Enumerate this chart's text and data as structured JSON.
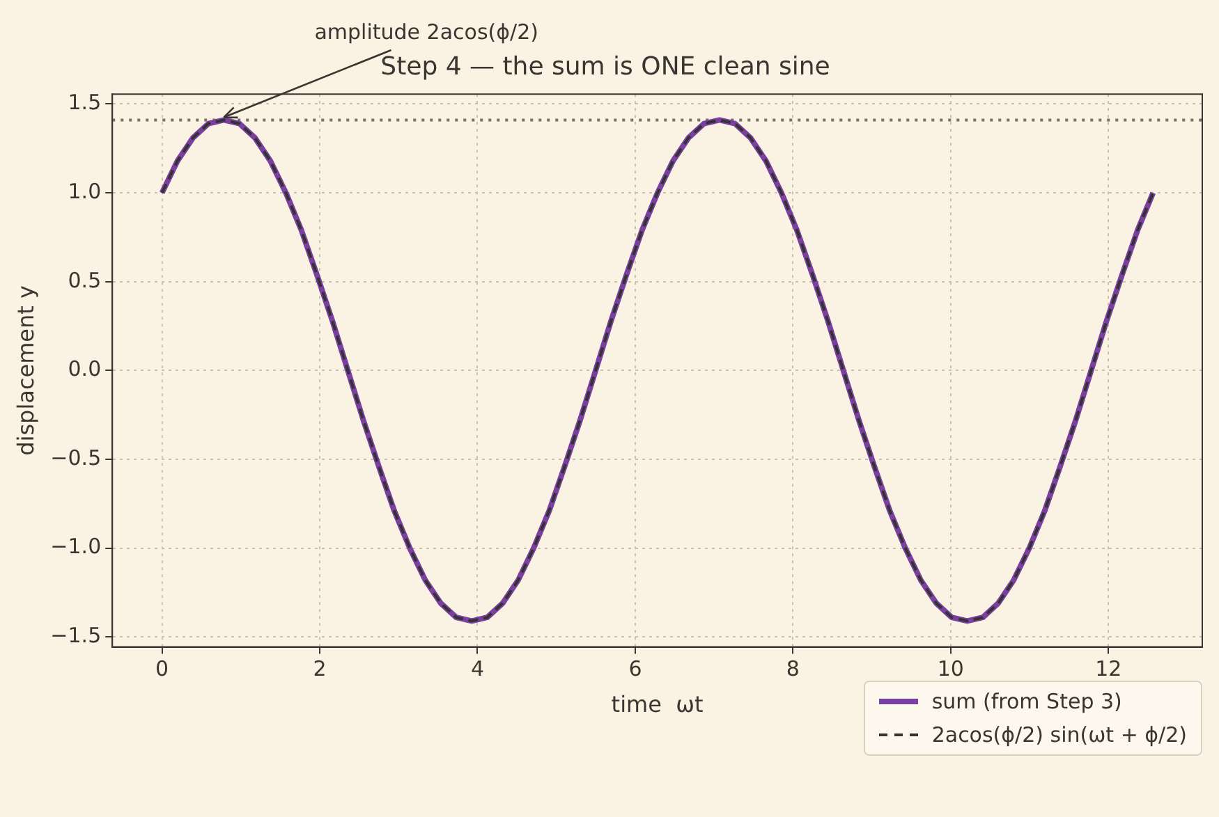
{
  "chart_data": {
    "type": "line",
    "title": "Step 4 — the sum is ONE clean sine",
    "xlabel": "time  ωt",
    "ylabel": "displacement y",
    "x": [
      0,
      0.196,
      0.393,
      0.589,
      0.785,
      0.982,
      1.178,
      1.374,
      1.571,
      1.767,
      1.963,
      2.16,
      2.356,
      2.553,
      2.749,
      2.945,
      3.142,
      3.338,
      3.534,
      3.731,
      3.927,
      4.123,
      4.32,
      4.516,
      4.712,
      4.909,
      5.105,
      5.301,
      5.498,
      5.694,
      5.89,
      6.087,
      6.283,
      6.479,
      6.676,
      6.872,
      7.069,
      7.265,
      7.461,
      7.658,
      7.854,
      8.05,
      8.247,
      8.443,
      8.639,
      8.836,
      9.032,
      9.228,
      9.425,
      9.621,
      9.817,
      10.014,
      10.21,
      10.407,
      10.603,
      10.799,
      10.996,
      11.192,
      11.388,
      11.585,
      11.781,
      11.977,
      12.174,
      12.37,
      12.566
    ],
    "series": [
      {
        "name": "sum (from Step 3)",
        "color": "#7b3fa0",
        "line_style": "solid",
        "values": [
          1,
          1.18,
          1.31,
          1.39,
          1.41,
          1.39,
          1.31,
          1.18,
          1,
          0.79,
          0.54,
          0.28,
          0,
          -0.28,
          -0.54,
          -0.79,
          -1,
          -1.18,
          -1.31,
          -1.39,
          -1.41,
          -1.39,
          -1.31,
          -1.18,
          -1,
          -0.79,
          -0.54,
          -0.28,
          0,
          0.28,
          0.54,
          0.79,
          1,
          1.18,
          1.31,
          1.39,
          1.41,
          1.39,
          1.31,
          1.18,
          1,
          0.79,
          0.54,
          0.28,
          0,
          -0.28,
          -0.54,
          -0.79,
          -1,
          -1.18,
          -1.31,
          -1.39,
          -1.41,
          -1.39,
          -1.31,
          -1.18,
          -1,
          -0.79,
          -0.54,
          -0.28,
          0,
          0.28,
          0.54,
          0.79,
          1
        ]
      },
      {
        "name": "2acos(ϕ/2) sin(ωt + ϕ/2)",
        "color": "#333333",
        "line_style": "dashed",
        "values": [
          1,
          1.18,
          1.31,
          1.39,
          1.41,
          1.39,
          1.31,
          1.18,
          1,
          0.79,
          0.54,
          0.28,
          0,
          -0.28,
          -0.54,
          -0.79,
          -1,
          -1.18,
          -1.31,
          -1.39,
          -1.41,
          -1.39,
          -1.31,
          -1.18,
          -1,
          -0.79,
          -0.54,
          -0.28,
          0,
          0.28,
          0.54,
          0.79,
          1,
          1.18,
          1.31,
          1.39,
          1.41,
          1.39,
          1.31,
          1.18,
          1,
          0.79,
          0.54,
          0.28,
          0,
          -0.28,
          -0.54,
          -0.79,
          -1,
          -1.18,
          -1.31,
          -1.39,
          -1.41,
          -1.39,
          -1.31,
          -1.18,
          -1,
          -0.79,
          -0.54,
          -0.28,
          0,
          0.28,
          0.54,
          0.79,
          1
        ]
      }
    ],
    "ref_lines": [
      {
        "axis": "y",
        "value": 1.41,
        "color": "#7a7060",
        "line_style": "dotted"
      }
    ],
    "annotations": [
      {
        "text": "amplitude 2acos(ϕ/2)",
        "x": 0.785,
        "y": 1.41
      }
    ],
    "xlim": [
      -0.63,
      13.19
    ],
    "xticks": [
      0,
      2,
      4,
      6,
      8,
      10,
      12
    ],
    "ylim": [
      -1.556,
      1.556
    ],
    "yticks": [
      {
        "value": -1.5,
        "label": "−1.5"
      },
      {
        "value": -1.0,
        "label": "−1.0"
      },
      {
        "value": -0.5,
        "label": "−0.5"
      },
      {
        "value": 0,
        "label": "0.0"
      },
      {
        "value": 0.5,
        "label": "0.5"
      },
      {
        "value": 1.0,
        "label": "1.0"
      },
      {
        "value": 1.5,
        "label": "1.5"
      }
    ],
    "grid": true,
    "legend": "bottom right",
    "marker": "none"
  }
}
